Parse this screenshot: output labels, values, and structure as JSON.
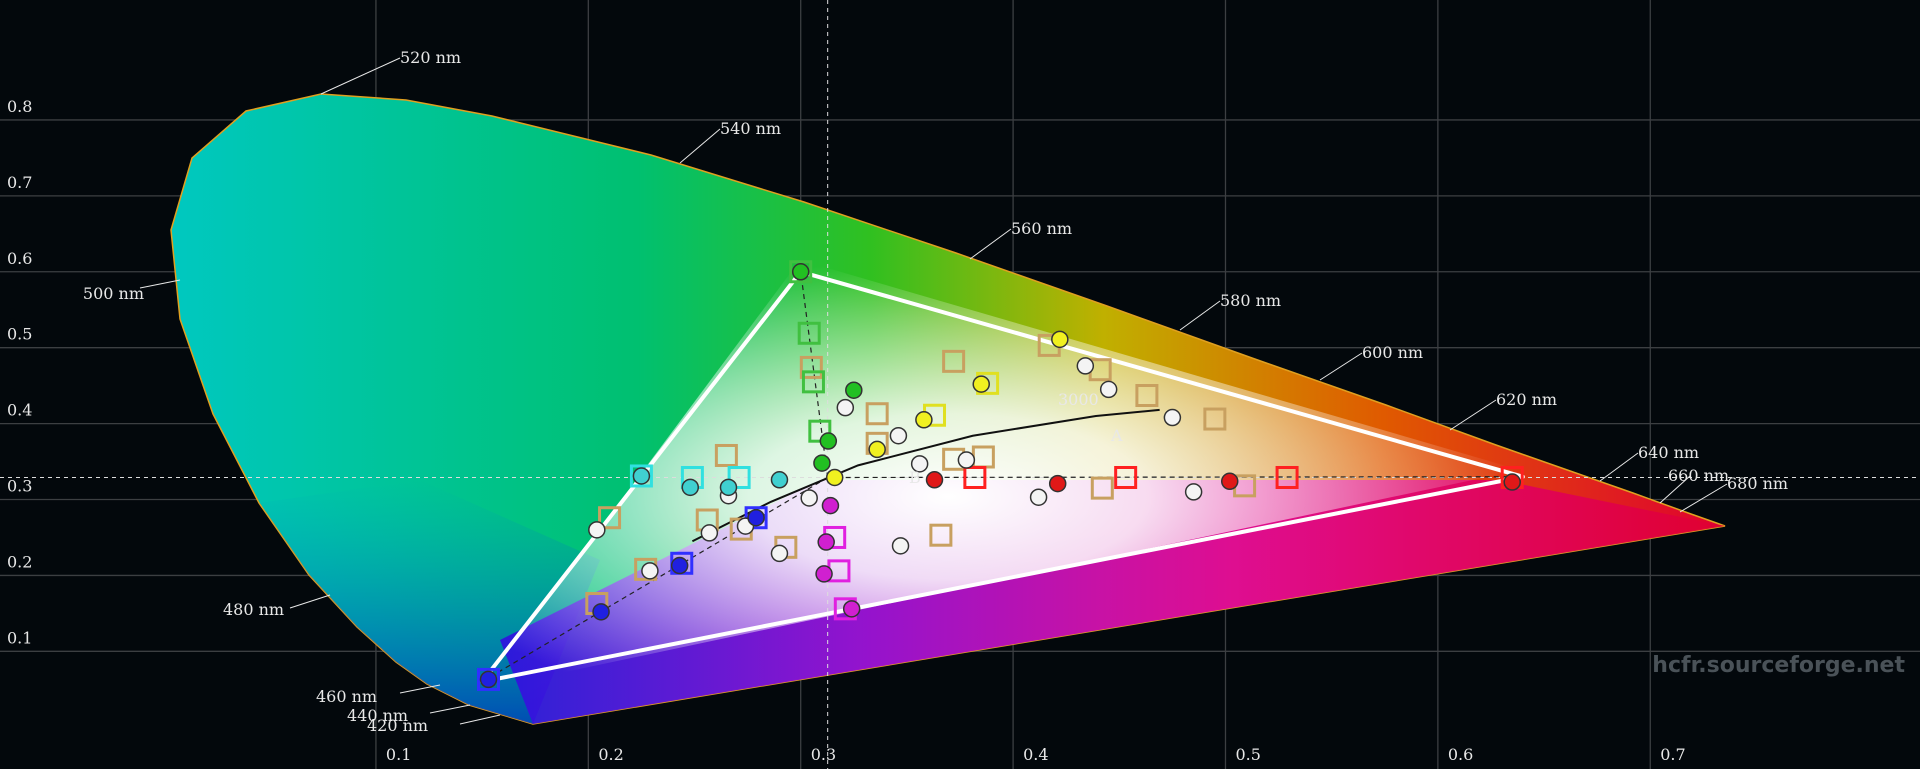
{
  "chart_data": {
    "type": "scatter",
    "xlim": [
      -0.077,
      0.827
    ],
    "ylim": [
      -0.055,
      0.958
    ],
    "xticks": [
      0.1,
      0.2,
      0.3,
      0.4,
      0.5,
      0.6,
      0.7
    ],
    "yticks": [
      0.1,
      0.2,
      0.3,
      0.4,
      0.5,
      0.6,
      0.7,
      0.8
    ],
    "grid": true,
    "grid_color": "#3c3f42",
    "crosshair": {
      "x": 0.3127,
      "y": 0.329
    },
    "wavelength_labels": [
      "520 nm",
      "540 nm",
      "560 nm",
      "580 nm",
      "600 nm",
      "620 nm",
      "640 nm",
      "660 nm",
      "680 nm",
      "500 nm",
      "480 nm",
      "460 nm",
      "440 nm",
      "420 nm"
    ],
    "cct_labels": [
      "3000",
      "A",
      "B"
    ],
    "watermark": "hcfr.sourceforge.net",
    "gamut": {
      "color": "#ffffff",
      "x": [
        0.64,
        0.3,
        0.15
      ],
      "y": [
        0.33,
        0.6,
        0.06
      ]
    },
    "blackbody": {
      "color": "#111111",
      "x": [
        0.249,
        0.286,
        0.327,
        0.381,
        0.439,
        0.469
      ],
      "y": [
        0.245,
        0.297,
        0.345,
        0.384,
        0.41,
        0.418
      ]
    },
    "series": [
      {
        "color": "#c8a060",
        "marker": "square",
        "x": [
          0.21,
          0.227,
          0.204,
          0.256,
          0.265,
          0.272,
          0.293,
          0.305,
          0.336,
          0.336,
          0.372,
          0.372,
          0.386,
          0.366,
          0.441,
          0.463,
          0.495,
          0.442,
          0.509,
          0.417
        ],
        "y": [
          0.276,
          0.208,
          0.163,
          0.273,
          0.358,
          0.261,
          0.237,
          0.474,
          0.413,
          0.374,
          0.482,
          0.353,
          0.356,
          0.253,
          0.471,
          0.437,
          0.406,
          0.315,
          0.318,
          0.503
        ]
      },
      {
        "color": "#40c040",
        "marker": "square",
        "x": [
          0.304,
          0.306,
          0.309,
          0.3
        ],
        "y": [
          0.519,
          0.455,
          0.39,
          0.6
        ]
      },
      {
        "color": "#ff2020",
        "marker": "square",
        "x": [
          0.382,
          0.453,
          0.529,
          0.635
        ],
        "y": [
          0.329,
          0.329,
          0.329,
          0.329
        ]
      },
      {
        "color": "#3030ff",
        "marker": "square",
        "x": [
          0.279,
          0.244,
          0.153
        ],
        "y": [
          0.276,
          0.216,
          0.063
        ]
      },
      {
        "color": "#e020e0",
        "marker": "square",
        "x": [
          0.316,
          0.318,
          0.321
        ],
        "y": [
          0.25,
          0.206,
          0.156
        ]
      },
      {
        "color": "#30e0e0",
        "marker": "square",
        "x": [
          0.225,
          0.249,
          0.271
        ],
        "y": [
          0.331,
          0.329,
          0.329
        ]
      },
      {
        "color": "#e0e020",
        "marker": "square",
        "x": [
          0.363,
          0.388
        ],
        "y": [
          0.411,
          0.453
        ]
      },
      {
        "color": "#f4f4f4",
        "marker": "circle",
        "x": [
          0.204,
          0.229,
          0.257,
          0.266,
          0.274,
          0.29,
          0.304,
          0.321,
          0.346,
          0.356,
          0.347,
          0.412,
          0.434,
          0.445,
          0.475,
          0.485,
          0.378
        ],
        "y": [
          0.26,
          0.206,
          0.256,
          0.305,
          0.265,
          0.229,
          0.302,
          0.421,
          0.384,
          0.347,
          0.239,
          0.303,
          0.476,
          0.445,
          0.408,
          0.31,
          0.352
        ]
      },
      {
        "color": "#22c022",
        "marker": "circle",
        "x": [
          0.325,
          0.313,
          0.31,
          0.3
        ],
        "y": [
          0.444,
          0.377,
          0.348,
          0.6
        ]
      },
      {
        "color": "#e01818",
        "marker": "circle",
        "x": [
          0.363,
          0.421,
          0.502,
          0.635
        ],
        "y": [
          0.326,
          0.321,
          0.324,
          0.323
        ]
      },
      {
        "color": "#2020e0",
        "marker": "circle",
        "x": [
          0.279,
          0.243,
          0.206,
          0.153
        ],
        "y": [
          0.276,
          0.213,
          0.152,
          0.063
        ]
      },
      {
        "color": "#d020d0",
        "marker": "circle",
        "x": [
          0.314,
          0.312,
          0.311,
          0.324
        ],
        "y": [
          0.292,
          0.244,
          0.202,
          0.156
        ]
      },
      {
        "color": "#40d0d0",
        "marker": "circle",
        "x": [
          0.225,
          0.248,
          0.266,
          0.29
        ],
        "y": [
          0.331,
          0.316,
          0.316,
          0.326
        ]
      },
      {
        "color": "#f0f020",
        "marker": "circle",
        "x": [
          0.316,
          0.336,
          0.358,
          0.385,
          0.422
        ],
        "y": [
          0.329,
          0.366,
          0.405,
          0.452,
          0.511
        ]
      }
    ]
  }
}
